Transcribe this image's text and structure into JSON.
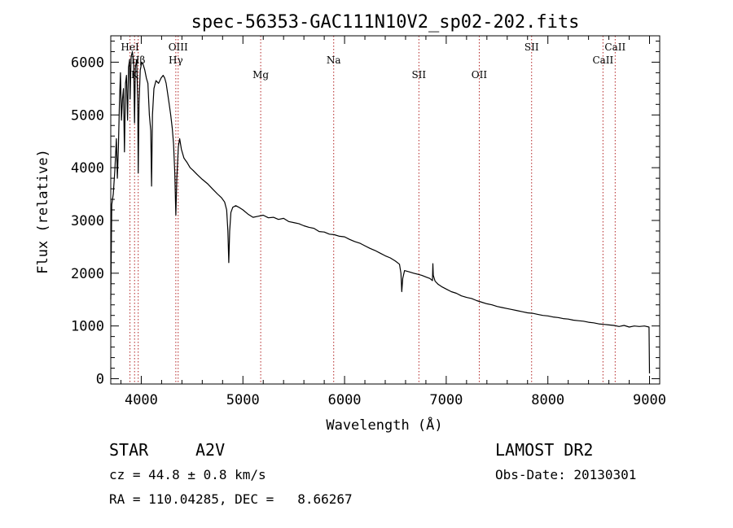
{
  "chart_data": {
    "type": "line",
    "title": "spec-56353-GAC111N10V2_sp02-202.fits",
    "xlabel": "Wavelength (Å)",
    "ylabel": "Flux (relative)",
    "xlim": [
      3700,
      9100
    ],
    "ylim": [
      -100,
      6500
    ],
    "x_ticks": [
      4000,
      5000,
      6000,
      7000,
      8000,
      9000
    ],
    "y_ticks": [
      0,
      1000,
      2000,
      3000,
      4000,
      5000,
      6000
    ],
    "x_tick_labels": [
      "4000",
      "5000",
      "6000",
      "7000",
      "8000",
      "9000"
    ],
    "y_tick_labels": [
      "0",
      "1000",
      "2000",
      "3000",
      "4000",
      "5000",
      "6000"
    ],
    "grid": false,
    "spectral_lines": [
      {
        "name": "HeI",
        "wavelength": 3889,
        "label_row": "top"
      },
      {
        "name": "Hβ",
        "wavelength": 3970,
        "label_row": "mid"
      },
      {
        "name": "K",
        "wavelength": 3934,
        "label_row": "low"
      },
      {
        "name": "OIII",
        "wavelength": 4363,
        "label_row": "top"
      },
      {
        "name": "Hγ",
        "wavelength": 4340,
        "label_row": "mid"
      },
      {
        "name": "Mg",
        "wavelength": 5175,
        "label_row": "low"
      },
      {
        "name": "Na",
        "wavelength": 5893,
        "label_row": "mid"
      },
      {
        "name": "SII",
        "wavelength": 6731,
        "label_row": "low"
      },
      {
        "name": "OII",
        "wavelength": 7325,
        "label_row": "low"
      },
      {
        "name": "SII",
        "wavelength": 7840,
        "label_row": "top"
      },
      {
        "name": "CaII",
        "wavelength": 8542,
        "label_row": "mid"
      },
      {
        "name": "CaII",
        "wavelength": 8662,
        "label_row": "top"
      }
    ],
    "series": [
      {
        "color": "#000000",
        "points": [
          [
            3700,
            1500
          ],
          [
            3710,
            3300
          ],
          [
            3725,
            3500
          ],
          [
            3740,
            3950
          ],
          [
            3755,
            4550
          ],
          [
            3765,
            3800
          ],
          [
            3775,
            4400
          ],
          [
            3785,
            5200
          ],
          [
            3795,
            5800
          ],
          [
            3805,
            4900
          ],
          [
            3815,
            5300
          ],
          [
            3825,
            5500
          ],
          [
            3835,
            4300
          ],
          [
            3845,
            5600
          ],
          [
            3855,
            5750
          ],
          [
            3865,
            4900
          ],
          [
            3875,
            5900
          ],
          [
            3885,
            6050
          ],
          [
            3890,
            5300
          ],
          [
            3900,
            6100
          ],
          [
            3912,
            6200
          ],
          [
            3925,
            6000
          ],
          [
            3934,
            4850
          ],
          [
            3942,
            5900
          ],
          [
            3955,
            6050
          ],
          [
            3965,
            5300
          ],
          [
            3970,
            3900
          ],
          [
            3978,
            5200
          ],
          [
            3990,
            5850
          ],
          [
            4005,
            6000
          ],
          [
            4020,
            5950
          ],
          [
            4035,
            5850
          ],
          [
            4050,
            5700
          ],
          [
            4065,
            5600
          ],
          [
            4080,
            5000
          ],
          [
            4093,
            4700
          ],
          [
            4101,
            3650
          ],
          [
            4110,
            5000
          ],
          [
            4125,
            5500
          ],
          [
            4145,
            5650
          ],
          [
            4170,
            5600
          ],
          [
            4195,
            5700
          ],
          [
            4215,
            5750
          ],
          [
            4230,
            5700
          ],
          [
            4245,
            5600
          ],
          [
            4260,
            5400
          ],
          [
            4275,
            5200
          ],
          [
            4290,
            5000
          ],
          [
            4305,
            4750
          ],
          [
            4318,
            4450
          ],
          [
            4330,
            3900
          ],
          [
            4340,
            3100
          ],
          [
            4350,
            3800
          ],
          [
            4365,
            4400
          ],
          [
            4378,
            4550
          ],
          [
            4395,
            4350
          ],
          [
            4420,
            4180
          ],
          [
            4450,
            4100
          ],
          [
            4480,
            4000
          ],
          [
            4510,
            3950
          ],
          [
            4550,
            3870
          ],
          [
            4600,
            3780
          ],
          [
            4650,
            3700
          ],
          [
            4700,
            3600
          ],
          [
            4750,
            3500
          ],
          [
            4790,
            3430
          ],
          [
            4820,
            3350
          ],
          [
            4840,
            3200
          ],
          [
            4852,
            2800
          ],
          [
            4861,
            2200
          ],
          [
            4870,
            2800
          ],
          [
            4882,
            3150
          ],
          [
            4900,
            3250
          ],
          [
            4930,
            3280
          ],
          [
            4960,
            3250
          ],
          [
            5000,
            3200
          ],
          [
            5050,
            3120
          ],
          [
            5100,
            3060
          ],
          [
            5150,
            3080
          ],
          [
            5200,
            3100
          ],
          [
            5250,
            3050
          ],
          [
            5300,
            3060
          ],
          [
            5350,
            3020
          ],
          [
            5400,
            3040
          ],
          [
            5450,
            2980
          ],
          [
            5500,
            2960
          ],
          [
            5550,
            2940
          ],
          [
            5600,
            2900
          ],
          [
            5650,
            2870
          ],
          [
            5700,
            2850
          ],
          [
            5750,
            2790
          ],
          [
            5800,
            2780
          ],
          [
            5850,
            2740
          ],
          [
            5900,
            2730
          ],
          [
            5950,
            2700
          ],
          [
            6000,
            2690
          ],
          [
            6050,
            2640
          ],
          [
            6100,
            2600
          ],
          [
            6150,
            2570
          ],
          [
            6200,
            2520
          ],
          [
            6250,
            2470
          ],
          [
            6300,
            2430
          ],
          [
            6350,
            2380
          ],
          [
            6400,
            2330
          ],
          [
            6450,
            2290
          ],
          [
            6500,
            2230
          ],
          [
            6540,
            2170
          ],
          [
            6555,
            2000
          ],
          [
            6563,
            1650
          ],
          [
            6572,
            1900
          ],
          [
            6590,
            2050
          ],
          [
            6630,
            2030
          ],
          [
            6680,
            2000
          ],
          [
            6720,
            1980
          ],
          [
            6760,
            1960
          ],
          [
            6800,
            1930
          ],
          [
            6840,
            1900
          ],
          [
            6865,
            1860
          ],
          [
            6869,
            2180
          ],
          [
            6873,
            1960
          ],
          [
            6890,
            1850
          ],
          [
            6920,
            1790
          ],
          [
            6960,
            1740
          ],
          [
            7000,
            1700
          ],
          [
            7050,
            1650
          ],
          [
            7100,
            1620
          ],
          [
            7150,
            1570
          ],
          [
            7200,
            1540
          ],
          [
            7250,
            1520
          ],
          [
            7300,
            1480
          ],
          [
            7350,
            1450
          ],
          [
            7400,
            1420
          ],
          [
            7450,
            1400
          ],
          [
            7500,
            1370
          ],
          [
            7550,
            1350
          ],
          [
            7600,
            1330
          ],
          [
            7650,
            1310
          ],
          [
            7700,
            1290
          ],
          [
            7750,
            1270
          ],
          [
            7800,
            1250
          ],
          [
            7850,
            1240
          ],
          [
            7900,
            1220
          ],
          [
            7950,
            1200
          ],
          [
            8000,
            1190
          ],
          [
            8050,
            1170
          ],
          [
            8100,
            1160
          ],
          [
            8150,
            1140
          ],
          [
            8200,
            1130
          ],
          [
            8250,
            1110
          ],
          [
            8300,
            1100
          ],
          [
            8350,
            1090
          ],
          [
            8400,
            1070
          ],
          [
            8450,
            1060
          ],
          [
            8500,
            1040
          ],
          [
            8550,
            1030
          ],
          [
            8600,
            1020
          ],
          [
            8650,
            1010
          ],
          [
            8700,
            990
          ],
          [
            8750,
            1010
          ],
          [
            8800,
            980
          ],
          [
            8850,
            1000
          ],
          [
            8900,
            990
          ],
          [
            8950,
            1000
          ],
          [
            8995,
            980
          ],
          [
            9000,
            100
          ]
        ]
      }
    ]
  },
  "info": {
    "object_type": "STAR",
    "subclass": "A2V",
    "survey": "LAMOST DR2",
    "redshift": "cz = 44.8 ± 0.8 km/s",
    "obs_date": "Obs-Date: 20130301",
    "coords": "RA = 110.04285, DEC =   8.66267"
  }
}
